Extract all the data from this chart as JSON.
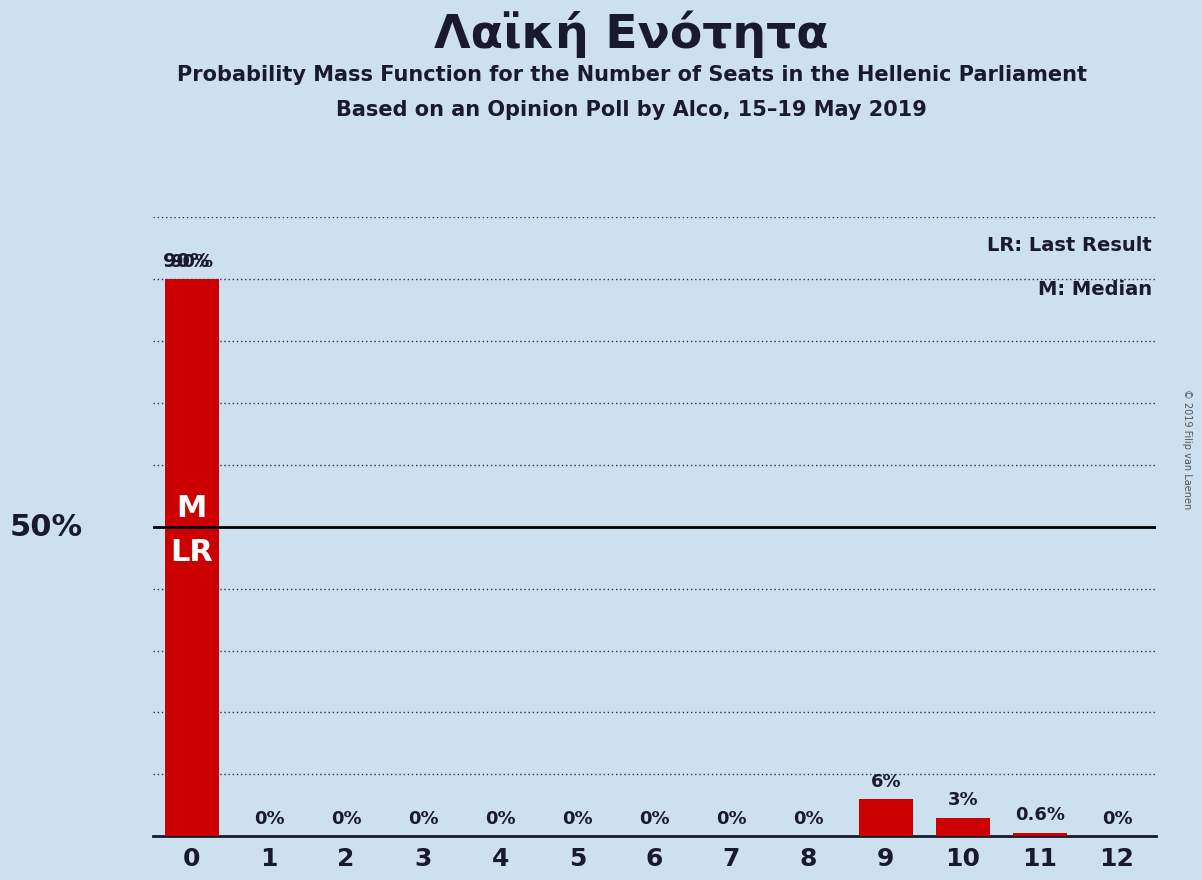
{
  "title": "Λαϊκή Ενότητα",
  "subtitle1": "Probability Mass Function for the Number of Seats in the Hellenic Parliament",
  "subtitle2": "Based on an Opinion Poll by Alco, 15–19 May 2019",
  "watermark": "© 2019 Filip van Laenen",
  "categories": [
    0,
    1,
    2,
    3,
    4,
    5,
    6,
    7,
    8,
    9,
    10,
    11,
    12
  ],
  "values": [
    90,
    0,
    0,
    0,
    0,
    0,
    0,
    0,
    0,
    6,
    3,
    0.6,
    0
  ],
  "bar_color": "#cc0000",
  "background_color": "#cce0f0",
  "median_label": "M",
  "last_result_label": "LR",
  "legend_lr": "LR: Last Result",
  "legend_m": "M: Median",
  "yticks": [
    0,
    10,
    20,
    30,
    40,
    50,
    60,
    70,
    80,
    90,
    100
  ],
  "ylim": [
    0,
    100
  ],
  "xlim": [
    -0.5,
    12.5
  ],
  "dotted_grid_color": "#333333",
  "solid_line_color": "#000000",
  "bar_width": 0.7,
  "text_color": "#1a1a2e",
  "pct_labels": [
    "90%",
    "0%",
    "0%",
    "0%",
    "0%",
    "0%",
    "0%",
    "0%",
    "0%",
    "6%",
    "3%",
    "0.6%",
    "0%"
  ]
}
